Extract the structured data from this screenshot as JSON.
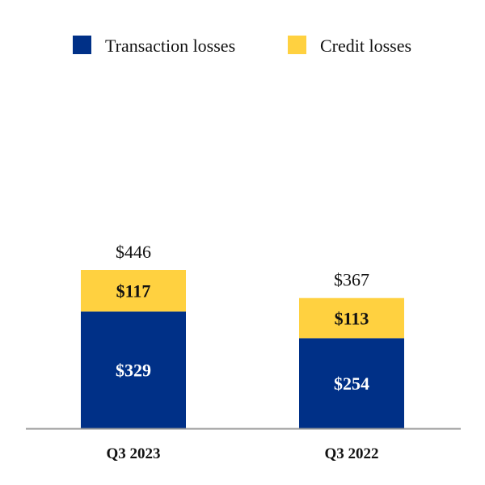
{
  "chart_data": {
    "type": "bar",
    "stacked": true,
    "categories": [
      "Q3 2023",
      "Q3 2022"
    ],
    "series": [
      {
        "name": "Transaction losses",
        "color": "#003087",
        "values": [
          329,
          254
        ],
        "labels": [
          "$329",
          "$254"
        ]
      },
      {
        "name": "Credit losses",
        "color": "#FFD140",
        "values": [
          117,
          113
        ],
        "labels": [
          "$117",
          "$113"
        ]
      }
    ],
    "totals": [
      446,
      367
    ],
    "total_labels": [
      "$446",
      "$367"
    ],
    "legend_position": "top",
    "grid": false,
    "ylim": [
      0,
      446
    ]
  }
}
